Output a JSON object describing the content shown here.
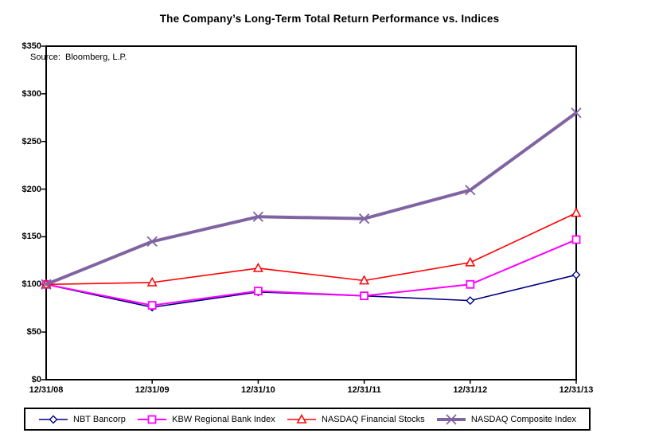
{
  "chart": {
    "title": "The Company’s Long-Term Total Return Performance vs. Indices",
    "source_note": "Source:  Bloomberg, L.P."
  },
  "chart_data": {
    "type": "line",
    "title": "The Company’s Long-Term Total Return Performance vs. Indices",
    "source": "Source:  Bloomberg, L.P.",
    "categories": [
      "12/31/08",
      "12/31/09",
      "12/31/10",
      "12/31/11",
      "12/31/12",
      "12/31/13"
    ],
    "xlabel": "",
    "ylabel": "",
    "ylim": [
      0,
      350
    ],
    "y_tick_step": 50,
    "y_tick_labels": [
      "$0",
      "$50",
      "$100",
      "$150",
      "$200",
      "$250",
      "$300",
      "$350"
    ],
    "grid": false,
    "legend_position": "bottom",
    "series": [
      {
        "name": "NBT Bancorp",
        "color": "#000080",
        "marker": "diamond",
        "line_width": 1.6,
        "values": [
          100,
          76,
          92,
          88,
          83,
          110
        ]
      },
      {
        "name": "KBW Regional Bank Index",
        "color": "#FF00FF",
        "marker": "square",
        "line_width": 2,
        "values": [
          100,
          78,
          93,
          88,
          100,
          147
        ]
      },
      {
        "name": "NASDAQ Financial Stocks",
        "color": "#FF0000",
        "marker": "triangle",
        "line_width": 1.6,
        "values": [
          100,
          102,
          117,
          104,
          123,
          175
        ]
      },
      {
        "name": "NASDAQ Composite Index",
        "color": "#8064A2",
        "marker": "x",
        "line_width": 4,
        "values": [
          100,
          145,
          171,
          169,
          199,
          280
        ]
      }
    ]
  }
}
